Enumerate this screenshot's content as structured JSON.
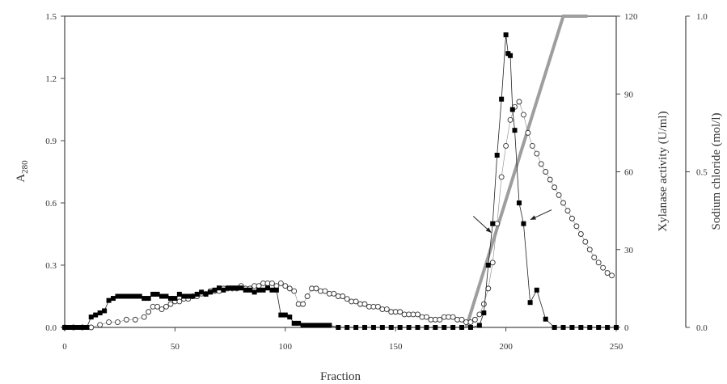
{
  "chart_data": {
    "type": "scatter",
    "xlabel": "Fraction",
    "ylabel_main": "A",
    "ylabel_main_sub": "280",
    "ylabel_right1": "Xylanase activity (U/ml)",
    "ylabel_right2": "Sodium chloride (mol/l)",
    "xlim": [
      0,
      250
    ],
    "ylim_left": [
      0,
      1.5
    ],
    "ylim_right1": [
      0,
      120
    ],
    "ylim_right2": [
      0,
      1.0
    ],
    "x_ticks": [
      "0",
      "50",
      "100",
      "150",
      "200",
      "250"
    ],
    "y_ticks_left": [
      "0.0",
      "0.3",
      "0.6",
      "0.9",
      "1.2",
      "1.5"
    ],
    "y_ticks_right1": [
      "0",
      "30",
      "60",
      "90",
      "120"
    ],
    "y_ticks_right2": [
      "0.0",
      "0.5",
      "1.0"
    ],
    "grid": false,
    "series": [
      {
        "marker": "filled-square",
        "axis": "left",
        "points": [
          [
            0,
            0.0
          ],
          [
            2,
            0.0
          ],
          [
            4,
            0.0
          ],
          [
            6,
            0.0
          ],
          [
            8,
            0.0
          ],
          [
            10,
            0.0
          ],
          [
            12,
            0.05
          ],
          [
            14,
            0.06
          ],
          [
            16,
            0.07
          ],
          [
            18,
            0.08
          ],
          [
            20,
            0.13
          ],
          [
            22,
            0.14
          ],
          [
            24,
            0.15
          ],
          [
            26,
            0.15
          ],
          [
            28,
            0.15
          ],
          [
            30,
            0.15
          ],
          [
            32,
            0.15
          ],
          [
            34,
            0.15
          ],
          [
            36,
            0.14
          ],
          [
            38,
            0.14
          ],
          [
            40,
            0.16
          ],
          [
            42,
            0.16
          ],
          [
            44,
            0.15
          ],
          [
            46,
            0.15
          ],
          [
            48,
            0.14
          ],
          [
            50,
            0.14
          ],
          [
            52,
            0.16
          ],
          [
            54,
            0.15
          ],
          [
            56,
            0.15
          ],
          [
            58,
            0.15
          ],
          [
            60,
            0.16
          ],
          [
            62,
            0.17
          ],
          [
            64,
            0.16
          ],
          [
            66,
            0.17
          ],
          [
            68,
            0.18
          ],
          [
            70,
            0.19
          ],
          [
            72,
            0.18
          ],
          [
            74,
            0.19
          ],
          [
            76,
            0.19
          ],
          [
            78,
            0.19
          ],
          [
            80,
            0.19
          ],
          [
            82,
            0.18
          ],
          [
            84,
            0.18
          ],
          [
            86,
            0.17
          ],
          [
            88,
            0.18
          ],
          [
            90,
            0.18
          ],
          [
            92,
            0.19
          ],
          [
            94,
            0.18
          ],
          [
            96,
            0.18
          ],
          [
            98,
            0.06
          ],
          [
            100,
            0.06
          ],
          [
            102,
            0.05
          ],
          [
            104,
            0.02
          ],
          [
            106,
            0.02
          ],
          [
            108,
            0.01
          ],
          [
            110,
            0.01
          ],
          [
            112,
            0.01
          ],
          [
            114,
            0.01
          ],
          [
            116,
            0.01
          ],
          [
            118,
            0.01
          ],
          [
            120,
            0.01
          ],
          [
            124,
            0.0
          ],
          [
            128,
            0.0
          ],
          [
            132,
            0.0
          ],
          [
            136,
            0.0
          ],
          [
            140,
            0.0
          ],
          [
            144,
            0.0
          ],
          [
            148,
            0.0
          ],
          [
            152,
            0.0
          ],
          [
            156,
            0.0
          ],
          [
            160,
            0.0
          ],
          [
            164,
            0.0
          ],
          [
            168,
            0.0
          ],
          [
            172,
            0.0
          ],
          [
            176,
            0.0
          ],
          [
            180,
            0.0
          ],
          [
            184,
            0.0
          ],
          [
            188,
            0.01
          ],
          [
            190,
            0.07
          ],
          [
            192,
            0.3
          ],
          [
            194,
            0.5
          ],
          [
            196,
            0.83
          ],
          [
            198,
            1.1
          ],
          [
            200,
            1.41
          ],
          [
            201,
            1.32
          ],
          [
            202,
            1.31
          ],
          [
            203,
            1.05
          ],
          [
            204,
            0.95
          ],
          [
            206,
            0.6
          ],
          [
            208,
            0.5
          ],
          [
            211,
            0.12
          ],
          [
            214,
            0.18
          ],
          [
            218,
            0.04
          ],
          [
            222,
            0.0
          ],
          [
            226,
            0.0
          ],
          [
            230,
            0.0
          ],
          [
            234,
            0.0
          ],
          [
            238,
            0.0
          ],
          [
            242,
            0.0
          ],
          [
            246,
            0.0
          ],
          [
            250,
            0.0
          ]
        ]
      },
      {
        "marker": "open-circle",
        "axis": "right1",
        "points": [
          [
            0,
            0
          ],
          [
            4,
            0
          ],
          [
            8,
            0
          ],
          [
            12,
            0
          ],
          [
            16,
            1
          ],
          [
            20,
            2
          ],
          [
            24,
            2
          ],
          [
            28,
            3
          ],
          [
            32,
            3
          ],
          [
            36,
            4
          ],
          [
            38,
            6
          ],
          [
            40,
            8
          ],
          [
            42,
            8
          ],
          [
            44,
            7
          ],
          [
            46,
            8
          ],
          [
            48,
            9
          ],
          [
            50,
            10
          ],
          [
            52,
            10
          ],
          [
            54,
            11
          ],
          [
            56,
            11
          ],
          [
            58,
            12
          ],
          [
            60,
            12
          ],
          [
            62,
            13
          ],
          [
            64,
            13
          ],
          [
            66,
            14
          ],
          [
            68,
            14
          ],
          [
            70,
            14
          ],
          [
            72,
            15
          ],
          [
            74,
            15
          ],
          [
            76,
            15
          ],
          [
            78,
            15
          ],
          [
            80,
            16
          ],
          [
            82,
            15
          ],
          [
            84,
            15
          ],
          [
            86,
            16
          ],
          [
            88,
            16
          ],
          [
            90,
            17
          ],
          [
            92,
            17
          ],
          [
            94,
            17
          ],
          [
            96,
            16
          ],
          [
            98,
            17
          ],
          [
            100,
            16
          ],
          [
            102,
            15
          ],
          [
            104,
            14
          ],
          [
            106,
            9
          ],
          [
            108,
            9
          ],
          [
            110,
            12
          ],
          [
            112,
            15
          ],
          [
            114,
            15
          ],
          [
            116,
            14
          ],
          [
            118,
            14
          ],
          [
            120,
            13
          ],
          [
            122,
            13
          ],
          [
            124,
            12
          ],
          [
            126,
            12
          ],
          [
            128,
            11
          ],
          [
            130,
            10
          ],
          [
            132,
            10
          ],
          [
            134,
            9
          ],
          [
            136,
            9
          ],
          [
            138,
            8
          ],
          [
            140,
            8
          ],
          [
            142,
            8
          ],
          [
            144,
            7
          ],
          [
            146,
            7
          ],
          [
            148,
            6
          ],
          [
            150,
            6
          ],
          [
            152,
            6
          ],
          [
            154,
            5
          ],
          [
            156,
            5
          ],
          [
            158,
            5
          ],
          [
            160,
            5
          ],
          [
            162,
            4
          ],
          [
            164,
            4
          ],
          [
            166,
            3
          ],
          [
            168,
            3
          ],
          [
            170,
            3
          ],
          [
            172,
            4
          ],
          [
            174,
            4
          ],
          [
            176,
            4
          ],
          [
            178,
            3
          ],
          [
            180,
            3
          ],
          [
            182,
            2
          ],
          [
            184,
            2
          ],
          [
            186,
            3
          ],
          [
            188,
            5
          ],
          [
            190,
            9
          ],
          [
            192,
            15
          ],
          [
            194,
            25
          ],
          [
            196,
            40
          ],
          [
            198,
            58
          ],
          [
            200,
            70
          ],
          [
            202,
            80
          ],
          [
            204,
            85
          ],
          [
            206,
            87
          ],
          [
            208,
            82
          ],
          [
            210,
            75
          ],
          [
            212,
            70
          ],
          [
            214,
            67
          ],
          [
            216,
            63
          ],
          [
            218,
            60
          ],
          [
            220,
            57
          ],
          [
            222,
            54
          ],
          [
            224,
            51
          ],
          [
            226,
            48
          ],
          [
            228,
            45
          ],
          [
            230,
            42
          ],
          [
            232,
            39
          ],
          [
            234,
            36
          ],
          [
            236,
            33
          ],
          [
            238,
            30
          ],
          [
            240,
            27
          ],
          [
            242,
            25
          ],
          [
            244,
            23
          ],
          [
            246,
            21
          ],
          [
            248,
            20
          ]
        ]
      },
      {
        "marker": "thick-gray-line",
        "axis": "right2",
        "points": [
          [
            182,
            0.0
          ],
          [
            226,
            1.0
          ],
          [
            237,
            1.0
          ]
        ]
      }
    ],
    "annotations": [
      {
        "type": "arrow",
        "at_fraction": 194,
        "at_a280": 0.45
      },
      {
        "type": "arrow",
        "at_fraction": 209,
        "at_a280": 0.52
      }
    ]
  },
  "colors": {
    "axis": "#444444",
    "filled_marker": "#000000",
    "open_marker": "#333333",
    "gradient_line": "#9e9e9e"
  }
}
